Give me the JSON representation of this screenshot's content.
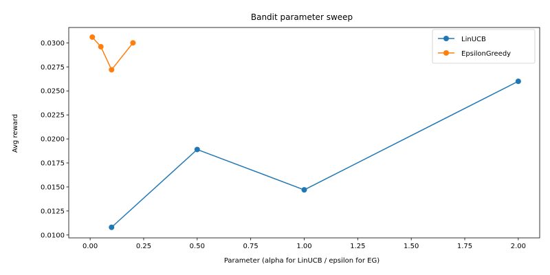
{
  "chart_data": {
    "type": "line",
    "title": "Bandit parameter sweep",
    "xlabel": "Parameter (alpha for LinUCB / epsilon for EG)",
    "ylabel": "Avg reward",
    "xlim": [
      -0.1,
      2.1
    ],
    "ylim": [
      0.0097,
      0.0316
    ],
    "xticks": [
      0.0,
      0.25,
      0.5,
      0.75,
      1.0,
      1.25,
      1.5,
      1.75,
      2.0
    ],
    "xtick_labels": [
      "0.00",
      "0.25",
      "0.50",
      "0.75",
      "1.00",
      "1.25",
      "1.50",
      "1.75",
      "2.00"
    ],
    "yticks": [
      0.01,
      0.0125,
      0.015,
      0.0175,
      0.02,
      0.0225,
      0.025,
      0.0275,
      0.03
    ],
    "ytick_labels": [
      "0.0100",
      "0.0125",
      "0.0150",
      "0.0175",
      "0.0200",
      "0.0225",
      "0.0250",
      "0.0275",
      "0.0300"
    ],
    "grid": false,
    "legend_position": "top-right",
    "series": [
      {
        "name": "LinUCB",
        "color": "#1f77b4",
        "x": [
          0.1,
          0.5,
          1.0,
          2.0
        ],
        "y": [
          0.0108,
          0.0189,
          0.0147,
          0.026
        ]
      },
      {
        "name": "EpsilonGreedy",
        "color": "#ff7f0e",
        "x": [
          0.01,
          0.05,
          0.1,
          0.2
        ],
        "y": [
          0.0306,
          0.0296,
          0.0272,
          0.03
        ]
      }
    ]
  }
}
